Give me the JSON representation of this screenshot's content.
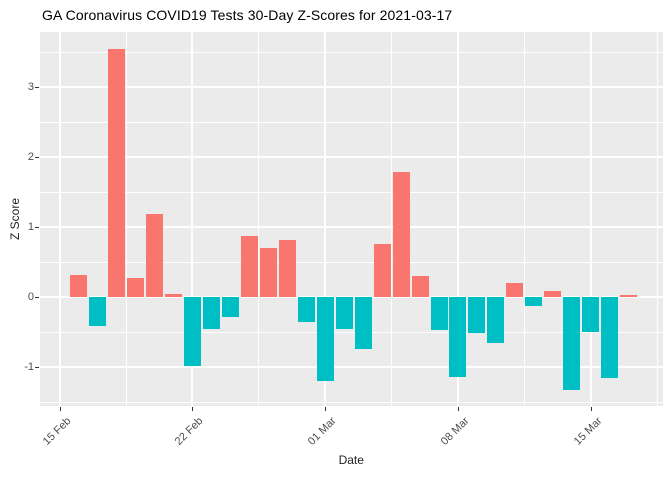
{
  "header": {
    "title": "GA Coronavirus COVID19 Tests 30-Day Z-Scores for 2021-03-17"
  },
  "chart_data": {
    "type": "bar",
    "title": "GA Coronavirus COVID19 Tests 30-Day Z-Scores for 2021-03-17",
    "xlabel": "Date",
    "ylabel": "Z Score",
    "legend_position": "none",
    "grid": "on",
    "panel_background": "#EBEBEB",
    "gridline_color": "#FFFFFF",
    "positive_color": "#F8766D",
    "negative_color": "#00BFC4",
    "axis_text_color": "#4D4D4D",
    "ylim": [
      -1.57,
      3.79
    ],
    "y_ticks": [
      -1,
      0,
      1,
      2,
      3
    ],
    "y_tick_labels": [
      "-1",
      "0",
      "1",
      "2",
      "3"
    ],
    "y_minor_ticks": [
      -1.5,
      -0.5,
      0.5,
      1.5,
      2.5,
      3.5
    ],
    "x_tick_labels": [
      "15 Feb",
      "22 Feb",
      "01 Mar",
      "08 Mar",
      "15 Mar"
    ],
    "x_tick_day_offsets": [
      0,
      7,
      14,
      21,
      28
    ],
    "dates": [
      "2021-02-16",
      "2021-02-17",
      "2021-02-18",
      "2021-02-19",
      "2021-02-20",
      "2021-02-21",
      "2021-02-22",
      "2021-02-23",
      "2021-02-24",
      "2021-02-25",
      "2021-02-26",
      "2021-02-27",
      "2021-02-28",
      "2021-03-01",
      "2021-03-02",
      "2021-03-03",
      "2021-03-04",
      "2021-03-05",
      "2021-03-06",
      "2021-03-07",
      "2021-03-08",
      "2021-03-09",
      "2021-03-10",
      "2021-03-11",
      "2021-03-12",
      "2021-03-13",
      "2021-03-14",
      "2021-03-15",
      "2021-03-16",
      "2021-03-17"
    ],
    "values": [
      0.31,
      -0.41,
      3.54,
      0.27,
      1.18,
      0.04,
      -0.99,
      -0.46,
      -0.28,
      0.87,
      0.7,
      0.81,
      -0.35,
      -1.2,
      -0.46,
      -0.74,
      0.76,
      1.79,
      0.3,
      -0.47,
      -1.14,
      -0.51,
      -0.65,
      0.2,
      -0.13,
      0.08,
      -1.33,
      -0.5,
      -1.15,
      0.03
    ]
  }
}
